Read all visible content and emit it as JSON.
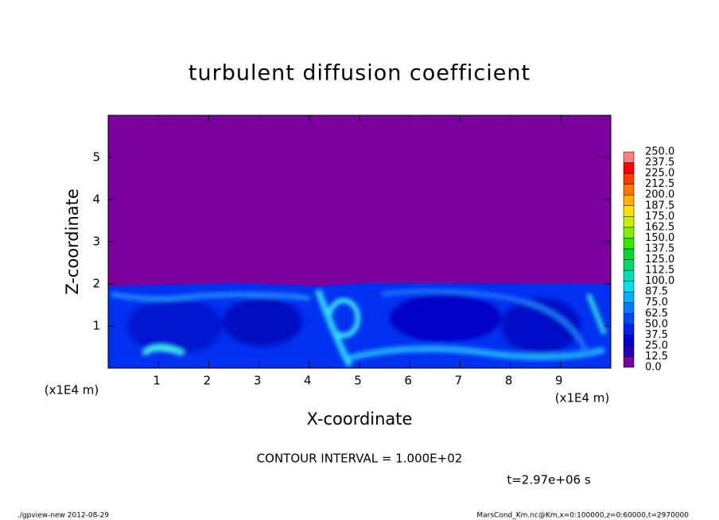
{
  "chart_data": {
    "type": "contour",
    "title": "turbulent diffusion coefficient",
    "x_label": "X-coordinate",
    "y_label": "Z-coordinate",
    "x_unit": "(x1E4 m)",
    "xlim": [
      0,
      10
    ],
    "xticks": [
      1,
      2,
      3,
      4,
      5,
      6,
      7,
      8,
      9
    ],
    "ylim": [
      0,
      6
    ],
    "yticks": [
      1,
      2,
      3,
      4,
      5
    ],
    "levels": [
      {
        "value": 0,
        "label": "0.0"
      },
      12.5,
      {
        "value": 25,
        "label": "25.0"
      },
      37.5,
      {
        "value": 50,
        "label": "50.0"
      },
      62.5,
      {
        "value": 75,
        "label": "75.0"
      },
      87.5,
      {
        "value": 100,
        "label": "100.0"
      },
      112.5,
      {
        "value": 125,
        "label": "125.0"
      },
      137.5,
      {
        "value": 150,
        "label": "150.0"
      },
      162.5,
      {
        "value": 175,
        "label": "175.0"
      },
      187.5,
      {
        "value": 200,
        "label": "200.0"
      },
      212.5,
      {
        "value": 225,
        "label": "225.0"
      },
      237.5,
      {
        "value": 250,
        "label": "250.0"
      }
    ],
    "colors": [
      "#7800a0",
      "#2000b8",
      "#0000d8",
      "#0020f0",
      "#0048ff",
      "#0078ff",
      "#00b0ff",
      "#00e0f0",
      "#00e0b0",
      "#00d870",
      "#00d830",
      "#30e800",
      "#80f000",
      "#c8f000",
      "#ffe000",
      "#ffb000",
      "#ff7800",
      "#ff3c00",
      "#ff0000",
      "#ff8080"
    ],
    "annotation": "CONTOUR INTERVAL = 1.000E+02",
    "time": "t=2.97e+06 s",
    "footer_left": "./gpview-new  2012-08-29",
    "footer_right": "MarsCond_Km.nc@Km,x=0:100000,z=0:60000,t=2970000"
  }
}
